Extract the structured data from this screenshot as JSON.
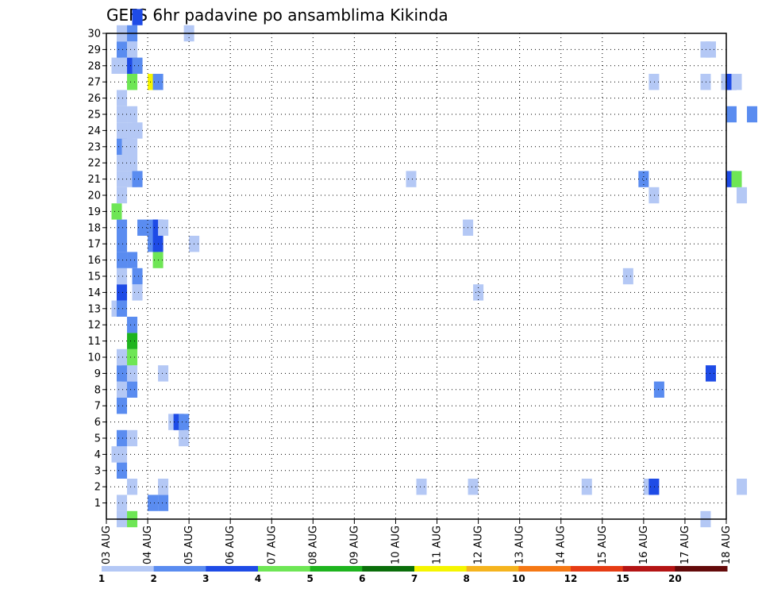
{
  "chart_data": {
    "type": "heatmap",
    "title": "GEFS 6hr padavine po ansamblima Kikinda",
    "y_ticks": [
      "1",
      "2",
      "3",
      "4",
      "5",
      "6",
      "7",
      "8",
      "9",
      "10",
      "11",
      "12",
      "13",
      "14",
      "15",
      "16",
      "17",
      "18",
      "19",
      "20",
      "21",
      "22",
      "23",
      "24",
      "25",
      "26",
      "27",
      "28",
      "29",
      "30"
    ],
    "x_ticks": [
      "03 AUG",
      "04 AUG",
      "05 AUG",
      "06 AUG",
      "07 AUG",
      "08 AUG",
      "09 AUG",
      "10 AUG",
      "11 AUG",
      "12 AUG",
      "13 AUG",
      "14 AUG",
      "15 AUG",
      "16 AUG",
      "17 AUG",
      "18 AUG"
    ],
    "x_range_days": [
      0,
      15
    ],
    "y_range": [
      0,
      30
    ],
    "grid": true,
    "legend": {
      "position": "bottom",
      "labels": [
        "1",
        "2",
        "3",
        "4",
        "5",
        "6",
        "7",
        "8",
        "10",
        "12",
        "15",
        "20"
      ],
      "colors": [
        "#b4c8f5",
        "#5a8cf0",
        "#1e4be6",
        "#6ee655",
        "#1eb41e",
        "#0a6e0a",
        "#f5f500",
        "#f5b41e",
        "#f57814",
        "#e63c14",
        "#b41414",
        "#640a0a"
      ]
    },
    "bin_colors": {
      "1": "#b4c8f5",
      "2": "#5a8cf0",
      "3": "#1e4be6",
      "4": "#6ee655",
      "5": "#1eb41e",
      "6": "#0a6e0a",
      "7": "#f5f500"
    },
    "cells": [
      {
        "t": 1,
        "m": 0,
        "bin": 1
      },
      {
        "t": 2,
        "m": 0,
        "bin": 4
      },
      {
        "t": 1,
        "m": 1,
        "bin": 1
      },
      {
        "t": 4,
        "m": 1,
        "bin": 2
      },
      {
        "t": 5,
        "m": 1,
        "bin": 2
      },
      {
        "t": 2,
        "m": 2,
        "bin": 1
      },
      {
        "t": 5,
        "m": 2,
        "bin": 1
      },
      {
        "t": 30,
        "m": 2,
        "bin": 1
      },
      {
        "t": 1,
        "m": 3,
        "bin": 2
      },
      {
        "t": 0.5,
        "m": 4,
        "bin": 1
      },
      {
        "t": 1,
        "m": 4,
        "bin": 1
      },
      {
        "t": 1,
        "m": 5,
        "bin": 2
      },
      {
        "t": 2,
        "m": 5,
        "bin": 1
      },
      {
        "t": 7,
        "m": 5,
        "bin": 1
      },
      {
        "t": 6,
        "m": 6,
        "bin": 1
      },
      {
        "t": 6.5,
        "m": 6,
        "bin": 3
      },
      {
        "t": 7,
        "m": 6,
        "bin": 2
      },
      {
        "t": 1,
        "m": 7,
        "bin": 2
      },
      {
        "t": 1,
        "m": 8,
        "bin": 1
      },
      {
        "t": 1.5,
        "m": 8,
        "bin": 1
      },
      {
        "t": 2,
        "m": 8,
        "bin": 2
      },
      {
        "t": 1,
        "m": 9,
        "bin": 2
      },
      {
        "t": 1.5,
        "m": 9,
        "bin": 2
      },
      {
        "t": 2,
        "m": 9,
        "bin": 1
      },
      {
        "t": 5,
        "m": 9,
        "bin": 1
      },
      {
        "t": 1,
        "m": 10,
        "bin": 1
      },
      {
        "t": 2,
        "m": 10,
        "bin": 4
      },
      {
        "t": 2,
        "m": 11,
        "bin": 5
      },
      {
        "t": 2,
        "m": 12,
        "bin": 2
      },
      {
        "t": 0.5,
        "m": 13,
        "bin": 1
      },
      {
        "t": 1,
        "m": 13,
        "bin": 2
      },
      {
        "t": 1,
        "m": 14,
        "bin": 3
      },
      {
        "t": 2.5,
        "m": 14,
        "bin": 1
      },
      {
        "t": 1,
        "m": 15,
        "bin": 1
      },
      {
        "t": 2.5,
        "m": 15,
        "bin": 2
      },
      {
        "t": 1,
        "m": 16,
        "bin": 2
      },
      {
        "t": 2,
        "m": 16,
        "bin": 2
      },
      {
        "t": 4.5,
        "m": 16,
        "bin": 4
      },
      {
        "t": 1,
        "m": 17,
        "bin": 2
      },
      {
        "t": 4,
        "m": 17,
        "bin": 2
      },
      {
        "t": 4.5,
        "m": 17,
        "bin": 3
      },
      {
        "t": 8,
        "m": 17,
        "bin": 1
      },
      {
        "t": 1,
        "m": 18,
        "bin": 2
      },
      {
        "t": 3,
        "m": 18,
        "bin": 2
      },
      {
        "t": 4,
        "m": 18,
        "bin": 2
      },
      {
        "t": 4.5,
        "m": 18,
        "bin": 3
      },
      {
        "t": 5,
        "m": 18,
        "bin": 1
      },
      {
        "t": 0.5,
        "m": 19,
        "bin": 4
      },
      {
        "t": 1,
        "m": 20,
        "bin": 1
      },
      {
        "t": 1,
        "m": 21,
        "bin": 1
      },
      {
        "t": 2,
        "m": 21,
        "bin": 1
      },
      {
        "t": 2.5,
        "m": 21,
        "bin": 2
      },
      {
        "t": 29,
        "m": 21,
        "bin": 1
      },
      {
        "t": 1,
        "m": 22,
        "bin": 1
      },
      {
        "t": 2,
        "m": 22,
        "bin": 1
      },
      {
        "t": 1,
        "m": 23,
        "bin": 2
      },
      {
        "t": 1.5,
        "m": 23,
        "bin": 1
      },
      {
        "t": 2,
        "m": 23,
        "bin": 1
      },
      {
        "t": 1,
        "m": 24,
        "bin": 1
      },
      {
        "t": 2,
        "m": 24,
        "bin": 1
      },
      {
        "t": 2.5,
        "m": 24,
        "bin": 1
      },
      {
        "t": 1,
        "m": 25,
        "bin": 1
      },
      {
        "t": 2,
        "m": 25,
        "bin": 1
      },
      {
        "t": 1,
        "m": 26,
        "bin": 1
      },
      {
        "t": 2,
        "m": 27,
        "bin": 4
      },
      {
        "t": 4,
        "m": 27,
        "bin": 7
      },
      {
        "t": 4.5,
        "m": 27,
        "bin": 2
      },
      {
        "t": 0.5,
        "m": 28,
        "bin": 1
      },
      {
        "t": 1,
        "m": 28,
        "bin": 1
      },
      {
        "t": 2,
        "m": 28,
        "bin": 3
      },
      {
        "t": 2.5,
        "m": 28,
        "bin": 2
      },
      {
        "t": 1,
        "m": 29,
        "bin": 2
      },
      {
        "t": 2,
        "m": 29,
        "bin": 1
      },
      {
        "t": 1,
        "m": 30,
        "bin": 1
      },
      {
        "t": 2,
        "m": 30,
        "bin": 2
      },
      {
        "t": 7.5,
        "m": 30,
        "bin": 1
      },
      {
        "t": 2.5,
        "m": 31,
        "bin": 3
      },
      {
        "t": 35,
        "m": 2,
        "bin": 1
      },
      {
        "t": 46,
        "m": 2,
        "bin": 1
      },
      {
        "t": 52,
        "m": 2,
        "bin": 1
      },
      {
        "t": 52.5,
        "m": 2,
        "bin": 3
      },
      {
        "t": 61,
        "m": 2,
        "bin": 1
      },
      {
        "t": 53,
        "m": 8,
        "bin": 2
      },
      {
        "t": 58,
        "m": 9,
        "bin": 3
      },
      {
        "t": 35.5,
        "m": 14,
        "bin": 1
      },
      {
        "t": 50,
        "m": 15,
        "bin": 1
      },
      {
        "t": 34.5,
        "m": 18,
        "bin": 1
      },
      {
        "t": 52.5,
        "m": 20,
        "bin": 1
      },
      {
        "t": 61,
        "m": 20,
        "bin": 1
      },
      {
        "t": 51.5,
        "m": 21,
        "bin": 2
      },
      {
        "t": 60,
        "m": 21,
        "bin": 3
      },
      {
        "t": 60.5,
        "m": 21,
        "bin": 4
      },
      {
        "t": 60,
        "m": 25,
        "bin": 2
      },
      {
        "t": 62,
        "m": 25,
        "bin": 2
      },
      {
        "t": 52.5,
        "m": 27,
        "bin": 1
      },
      {
        "t": 57.5,
        "m": 27,
        "bin": 1
      },
      {
        "t": 59.5,
        "m": 27,
        "bin": 1
      },
      {
        "t": 60,
        "m": 27,
        "bin": 3
      },
      {
        "t": 60.5,
        "m": 27,
        "bin": 1
      },
      {
        "t": 57.5,
        "m": 29,
        "bin": 1
      },
      {
        "t": 58,
        "m": 29,
        "bin": 1
      },
      {
        "t": 57.5,
        "m": 0,
        "bin": 1
      }
    ]
  }
}
